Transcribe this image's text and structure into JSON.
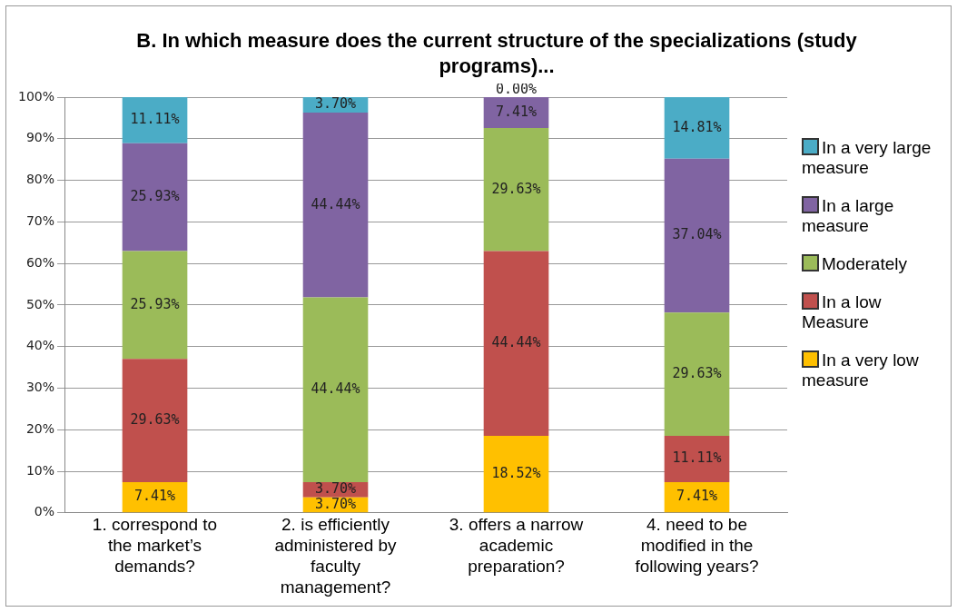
{
  "chart_data": {
    "type": "bar",
    "title": "B. In which measure does the current structure of the specializations (study programs)...",
    "stacked": true,
    "categories": [
      "1. correspond to the market’s demands?",
      "2. is efficiently administered by faculty management?",
      "3. offers a narrow academic preparation?",
      "4. need to be modified in the following years?"
    ],
    "series": [
      {
        "name": "In a very low measure",
        "color": "#ffc000",
        "values": [
          7.41,
          3.7,
          18.52,
          7.41
        ],
        "value_labels": [
          "7.41%",
          "3.70%",
          "18.52%",
          "7.41%"
        ]
      },
      {
        "name": "In a low Measure",
        "color": "#c0504d",
        "values": [
          29.63,
          3.7,
          44.44,
          11.11
        ],
        "value_labels": [
          "29.63%",
          "3.70%",
          "44.44%",
          "11.11%"
        ]
      },
      {
        "name": "Moderately",
        "color": "#9bbb59",
        "values": [
          25.93,
          44.44,
          29.63,
          29.63
        ],
        "value_labels": [
          "25.93%",
          "44.44%",
          "29.63%",
          "29.63%"
        ]
      },
      {
        "name": "In a large measure",
        "color": "#8064a2",
        "values": [
          25.93,
          44.44,
          7.41,
          37.04
        ],
        "value_labels": [
          "25.93%",
          "44.44%",
          "7.41%",
          "37.04%"
        ]
      },
      {
        "name": "In a very large measure",
        "color": "#4bacc6",
        "values": [
          11.11,
          3.7,
          0.0,
          14.81
        ],
        "value_labels": [
          "11.11%",
          "3.70%",
          "0.00%",
          "14.81%"
        ]
      }
    ],
    "ylim": [
      0,
      100
    ],
    "yticks": [
      {
        "value": 0,
        "label": "0%"
      },
      {
        "value": 10,
        "label": "10%"
      },
      {
        "value": 20,
        "label": "20%"
      },
      {
        "value": 30,
        "label": "30%"
      },
      {
        "value": 40,
        "label": "40%"
      },
      {
        "value": 50,
        "label": "50%"
      },
      {
        "value": 60,
        "label": "60%"
      },
      {
        "value": 70,
        "label": "70%"
      },
      {
        "value": 80,
        "label": "80%"
      },
      {
        "value": 90,
        "label": "90%"
      },
      {
        "value": 100,
        "label": "100%"
      }
    ],
    "grid": "y",
    "legend": "right"
  }
}
